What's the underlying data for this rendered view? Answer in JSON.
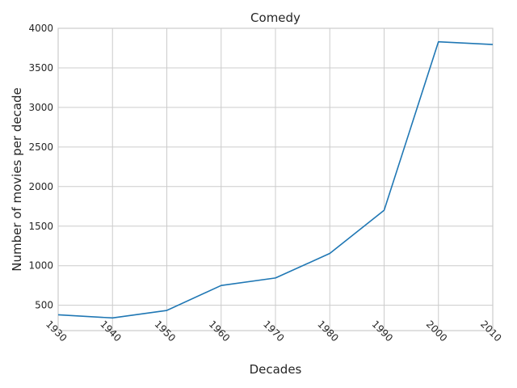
{
  "chart_data": {
    "type": "line",
    "title": "Comedy",
    "xlabel": "Decades",
    "ylabel": "Number of movies per decade",
    "x": [
      1930,
      1940,
      1950,
      1960,
      1970,
      1980,
      1990,
      2000,
      2010
    ],
    "series": [
      {
        "values": [
          380,
          340,
          435,
          750,
          845,
          1155,
          1700,
          3830,
          3795
        ]
      }
    ],
    "xlim": [
      1930,
      2010
    ],
    "ylim": [
      180,
      4000
    ],
    "xticks": [
      "1930",
      "1940",
      "1950",
      "1960",
      "1970",
      "1980",
      "1990",
      "2000",
      "2010"
    ],
    "yticks": [
      "500",
      "1000",
      "1500",
      "2000",
      "2500",
      "3000",
      "3500",
      "4000"
    ],
    "grid": true,
    "colors": {
      "line": "#1f77b4",
      "grid": "#cccccc",
      "axes": "#cccccc"
    }
  }
}
